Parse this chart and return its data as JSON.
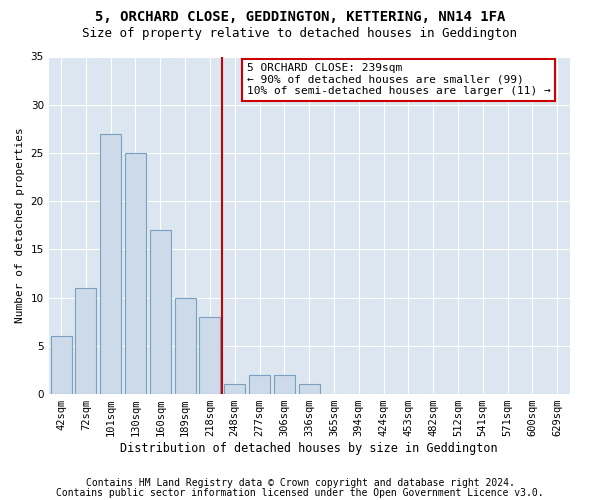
{
  "title1": "5, ORCHARD CLOSE, GEDDINGTON, KETTERING, NN14 1FA",
  "title2": "Size of property relative to detached houses in Geddington",
  "xlabel": "Distribution of detached houses by size in Geddington",
  "ylabel": "Number of detached properties",
  "categories": [
    "42sqm",
    "72sqm",
    "101sqm",
    "130sqm",
    "160sqm",
    "189sqm",
    "218sqm",
    "248sqm",
    "277sqm",
    "306sqm",
    "336sqm",
    "365sqm",
    "394sqm",
    "424sqm",
    "453sqm",
    "482sqm",
    "512sqm",
    "541sqm",
    "571sqm",
    "600sqm",
    "629sqm"
  ],
  "values": [
    6,
    11,
    27,
    25,
    17,
    10,
    8,
    1,
    2,
    2,
    1,
    0,
    0,
    0,
    0,
    0,
    0,
    0,
    0,
    0,
    0
  ],
  "bar_color": "#cddaea",
  "bar_edge_color": "#7aa0c0",
  "vline_color": "#cc0000",
  "ylim": [
    0,
    35
  ],
  "yticks": [
    0,
    5,
    10,
    15,
    20,
    25,
    30,
    35
  ],
  "bg_color": "#dce6f0",
  "footer1": "Contains HM Land Registry data © Crown copyright and database right 2024.",
  "footer2": "Contains public sector information licensed under the Open Government Licence v3.0.",
  "title1_fontsize": 10,
  "title2_fontsize": 9,
  "xlabel_fontsize": 8.5,
  "ylabel_fontsize": 8,
  "tick_fontsize": 7.5,
  "footer_fontsize": 7,
  "annotation_fontsize": 8,
  "annotation_line1": "5 ORCHARD CLOSE: 239sqm",
  "annotation_line2": "← 90% of detached houses are smaller (99)",
  "annotation_line3": "10% of semi-detached houses are larger (11) →",
  "annotation_box_edge": "#cc0000",
  "vline_bin_index": 7
}
